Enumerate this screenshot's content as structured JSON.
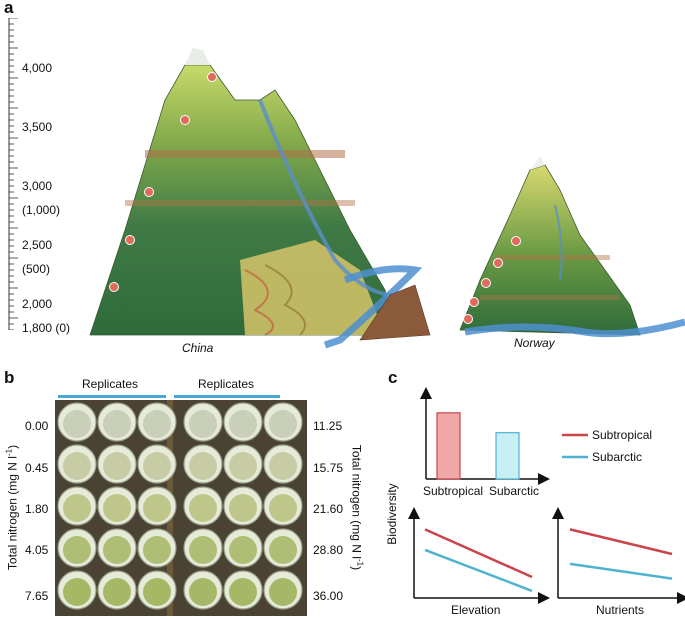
{
  "panels": {
    "a": {
      "label": "a",
      "scale_labels": [
        "4,000",
        "3,500",
        "3,000",
        "(1,000)",
        "2,500",
        "(500)",
        "2,000",
        "1,800 (0)"
      ],
      "mountain_captions": [
        "China",
        "Norway"
      ]
    },
    "b": {
      "label": "b",
      "replicates_left": "Replicates",
      "replicates_right": "Replicates",
      "left_axis_label": "Total nitrogen (mg N l",
      "right_axis_label": "Total nitrogen (mg N l",
      "axis_superscript": "-1",
      "axis_close": ")",
      "left_values": [
        "0.00",
        "0.45",
        "1.80",
        "4.05",
        "7.65"
      ],
      "right_values": [
        "11.25",
        "15.75",
        "21.60",
        "28.80",
        "36.00"
      ]
    },
    "c": {
      "label": "c",
      "y_label": "Biodiversity",
      "legend": [
        {
          "name": "Subtropical",
          "color": "#c9454a"
        },
        {
          "name": "Subarctic",
          "color": "#4fb3cf"
        }
      ],
      "bar_categories": [
        "Subtropical",
        "Subarctic"
      ],
      "x_labels": [
        "Elevation",
        "Nutrients"
      ]
    }
  },
  "chart_data": [
    {
      "type": "bar",
      "categories": [
        "Subtropical",
        "Subarctic"
      ],
      "values": [
        1.0,
        0.7
      ],
      "ylim": [
        0,
        1.3
      ]
    },
    {
      "type": "line",
      "xlabel": "Elevation",
      "ylabel": "Biodiversity",
      "x": [
        0,
        1
      ],
      "series": [
        {
          "name": "Subtropical",
          "values": [
            0.8,
            0.22
          ]
        },
        {
          "name": "Subarctic",
          "values": [
            0.55,
            0.05
          ]
        }
      ],
      "ylim": [
        0,
        1
      ]
    },
    {
      "type": "line",
      "xlabel": "Nutrients",
      "ylabel": "Biodiversity",
      "x": [
        0,
        1
      ],
      "series": [
        {
          "name": "Subtropical",
          "values": [
            0.8,
            0.5
          ]
        },
        {
          "name": "Subarctic",
          "values": [
            0.38,
            0.2
          ]
        }
      ],
      "ylim": [
        0,
        1
      ]
    }
  ]
}
